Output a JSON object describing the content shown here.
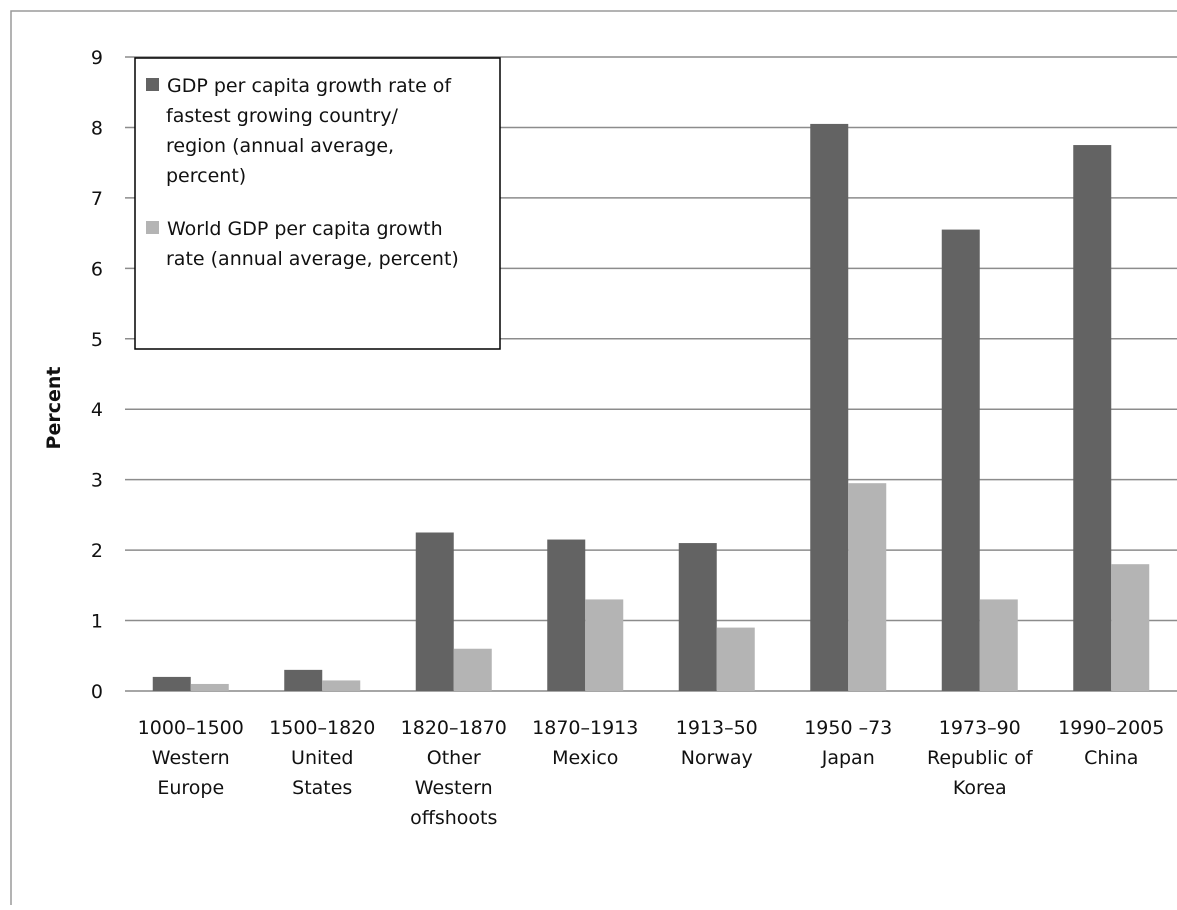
{
  "chart_data": {
    "type": "bar",
    "ylabel": "Percent",
    "ylim": [
      0,
      9
    ],
    "yticks": [
      0,
      1,
      2,
      3,
      4,
      5,
      6,
      7,
      8,
      9
    ],
    "grid": true,
    "legend_position": "top-left",
    "categories": [
      [
        "1000–1500",
        "Western",
        "Europe"
      ],
      [
        "1500–1820",
        "United",
        "States"
      ],
      [
        "1820–1870",
        "Other",
        "Western",
        "offshoots"
      ],
      [
        "1870–1913",
        "Mexico"
      ],
      [
        "1913–50",
        "Norway"
      ],
      [
        "1950 –73",
        "Japan"
      ],
      [
        "1973–90",
        "Republic of",
        "Korea"
      ],
      [
        "1990–2005",
        "China"
      ]
    ],
    "series": [
      {
        "name": [
          "GDP per capita growth rate of",
          "fastest growing country/",
          "region (annual average,",
          "percent)"
        ],
        "color": "#636363",
        "values": [
          0.2,
          0.3,
          2.25,
          2.15,
          2.1,
          8.05,
          6.55,
          7.75
        ]
      },
      {
        "name": [
          "World GDP per capita growth",
          "rate (annual average, percent)"
        ],
        "color": "#b4b4b4",
        "values": [
          0.1,
          0.15,
          0.6,
          1.3,
          0.9,
          2.95,
          1.3,
          1.8
        ]
      }
    ]
  }
}
